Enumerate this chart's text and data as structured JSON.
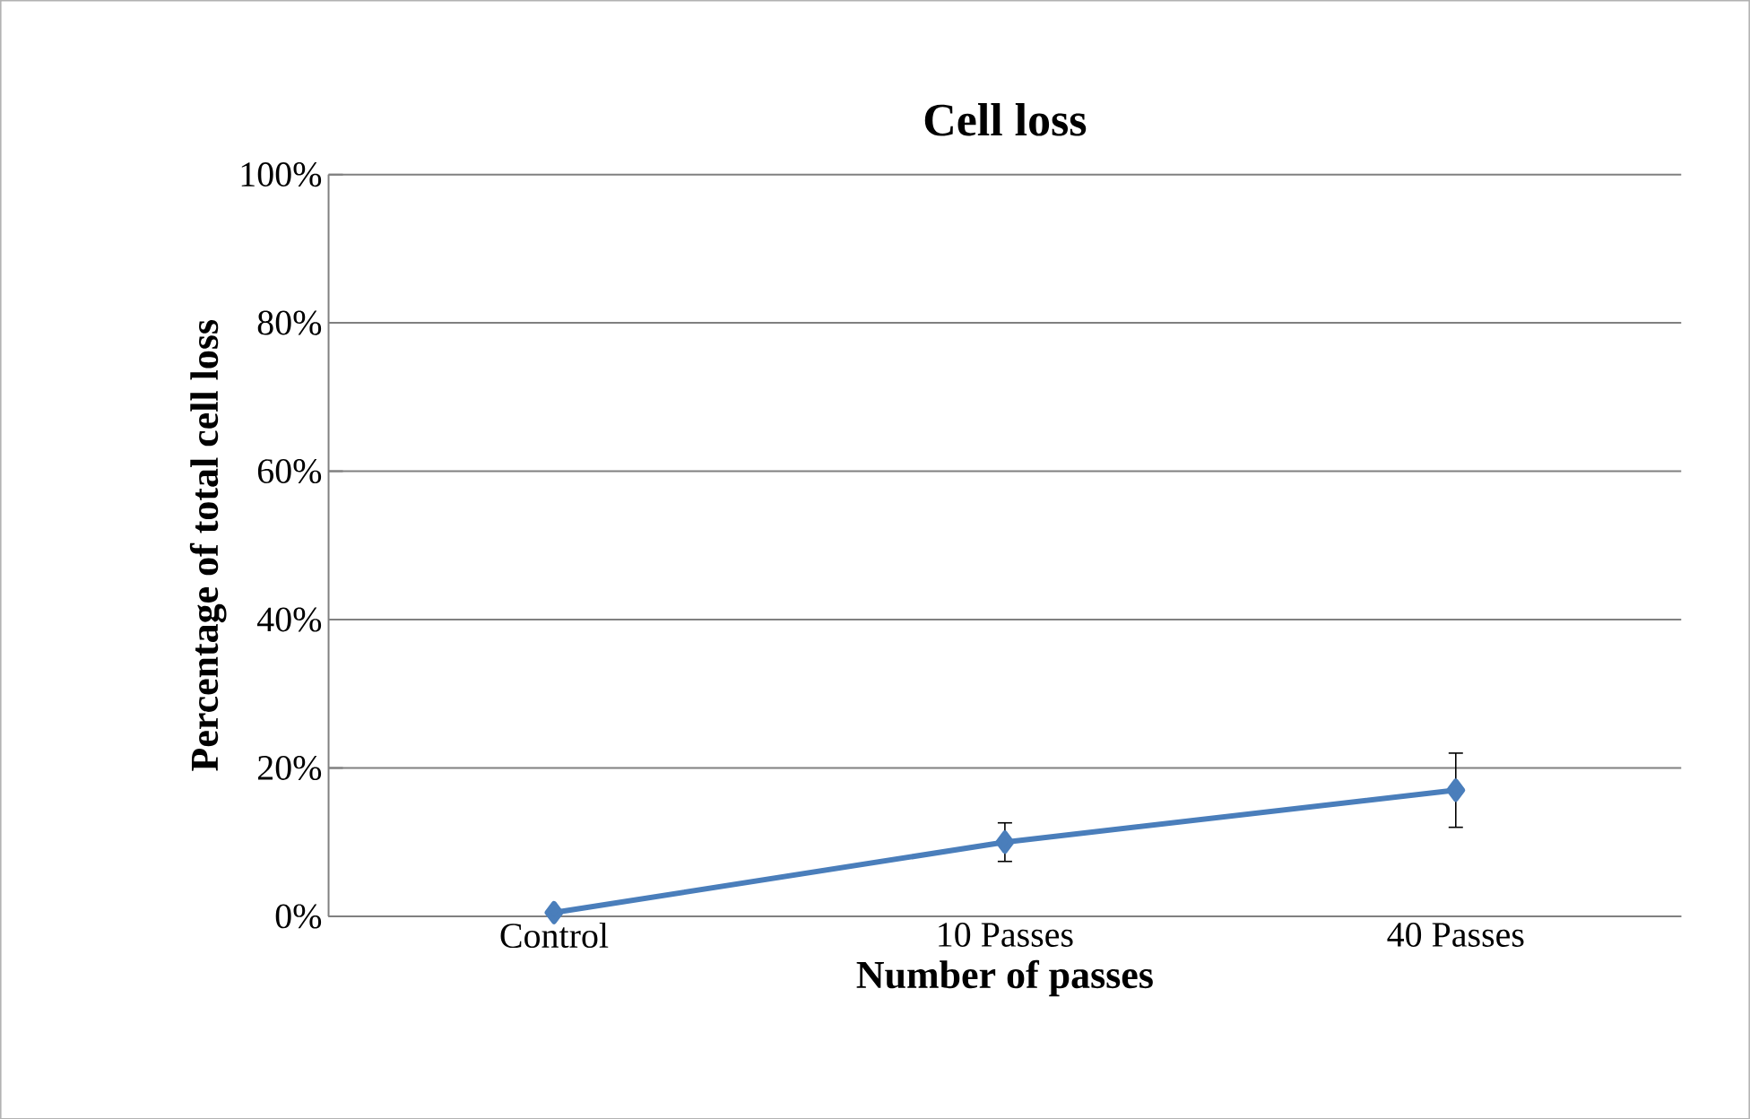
{
  "chart_data": {
    "type": "line",
    "title": "Cell loss",
    "xlabel": "Number of passes",
    "ylabel": "Percentage of total cell loss",
    "categories": [
      "Control",
      "10 Passes",
      "40 Passes"
    ],
    "series": [
      {
        "color": "#4a7ebb",
        "values": [
          0.5,
          10,
          17
        ],
        "errors": [
          null,
          2.6,
          5
        ]
      }
    ],
    "ylim": [
      0,
      100
    ],
    "yticks": [
      {
        "value": 0,
        "label": "0%"
      },
      {
        "value": 20,
        "label": "20%"
      },
      {
        "value": 40,
        "label": "40%"
      },
      {
        "value": 60,
        "label": "60%"
      },
      {
        "value": 80,
        "label": "80%"
      },
      {
        "value": 100,
        "label": "100%"
      }
    ],
    "grid": "y",
    "marker": "diamond",
    "line_style": "solid"
  }
}
